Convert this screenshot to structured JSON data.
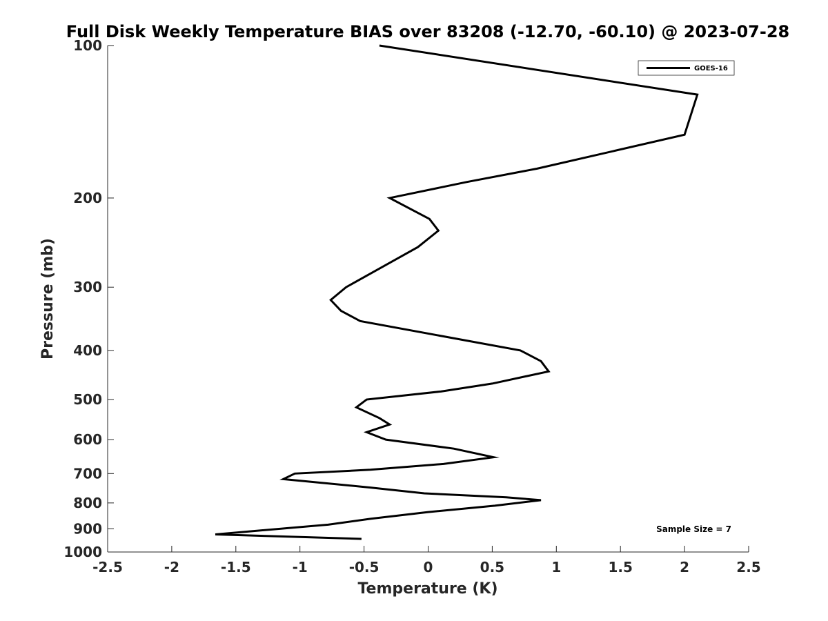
{
  "chart_data": {
    "type": "line",
    "title": "Full Disk Weekly Temperature BIAS over 83208 (-12.70, -60.10) @ 2023-07-28",
    "xlabel": "Temperature (K)",
    "ylabel": "Pressure (mb)",
    "xlim": [
      -2.5,
      2.5
    ],
    "ylim": [
      100,
      1000
    ],
    "y_scale": "log",
    "y_reversed": true,
    "x_ticks": [
      -2.5,
      -2,
      -1.5,
      -1,
      -0.5,
      0,
      0.5,
      1,
      1.5,
      2,
      2.5
    ],
    "x_tick_labels": [
      "-2.5",
      "-2",
      "-1.5",
      "-1",
      "-0.5",
      "0",
      "0.5",
      "1",
      "1.5",
      "2",
      "2.5"
    ],
    "y_ticks": [
      100,
      200,
      300,
      400,
      500,
      600,
      700,
      800,
      900,
      1000
    ],
    "y_tick_labels": [
      "100",
      "200",
      "300",
      "400",
      "500",
      "600",
      "700",
      "800",
      "900",
      "1000"
    ],
    "grid": false,
    "legend_position": "top-right",
    "annotation": "Sample Size = 7",
    "series": [
      {
        "name": "GOES-16",
        "color": "#000000",
        "points": [
          [
            -0.38,
            100
          ],
          [
            2.1,
            125
          ],
          [
            2.0,
            150
          ],
          [
            0.85,
            175
          ],
          [
            0.3,
            186
          ],
          [
            -0.3,
            200
          ],
          [
            0.01,
            220
          ],
          [
            0.08,
            232
          ],
          [
            -0.08,
            250
          ],
          [
            -0.64,
            300
          ],
          [
            -0.76,
            318
          ],
          [
            -0.68,
            334
          ],
          [
            -0.53,
            350
          ],
          [
            0.72,
            400
          ],
          [
            0.88,
            420
          ],
          [
            0.94,
            440
          ],
          [
            0.5,
            465
          ],
          [
            0.1,
            482
          ],
          [
            -0.48,
            500
          ],
          [
            -0.56,
            518
          ],
          [
            -0.38,
            544
          ],
          [
            -0.3,
            560
          ],
          [
            -0.48,
            580
          ],
          [
            -0.33,
            600
          ],
          [
            0.2,
            625
          ],
          [
            0.51,
            650
          ],
          [
            0.12,
            670
          ],
          [
            -0.45,
            688
          ],
          [
            -1.04,
            700
          ],
          [
            -1.13,
            718
          ],
          [
            -0.45,
            746
          ],
          [
            -0.03,
            766
          ],
          [
            0.61,
            780
          ],
          [
            0.88,
            790
          ],
          [
            0.52,
            810
          ],
          [
            0.0,
            834
          ],
          [
            -0.45,
            860
          ],
          [
            -0.78,
            883
          ],
          [
            -1.66,
            923
          ],
          [
            -0.52,
            942
          ]
        ]
      }
    ]
  }
}
